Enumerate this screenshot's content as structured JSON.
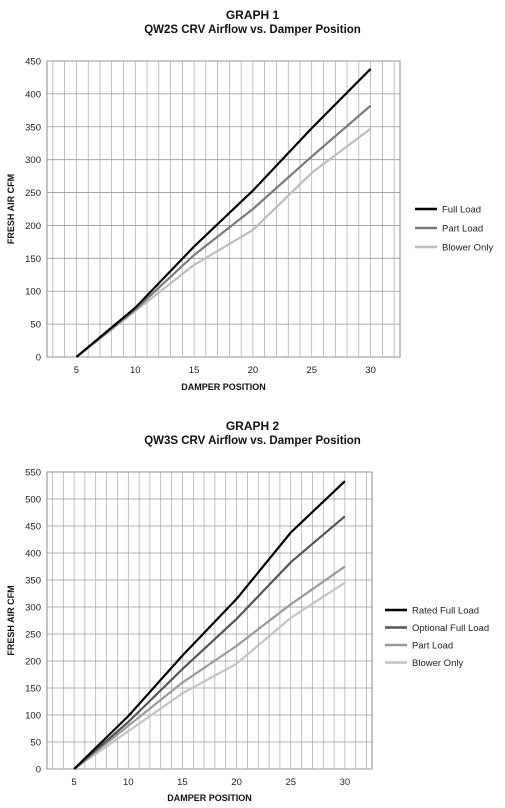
{
  "chart_data": [
    {
      "type": "line",
      "title": "GRAPH 1",
      "subtitle": "QW2S CRV Airflow vs. Damper Position",
      "xlabel": "DAMPER POSITION",
      "ylabel": "FRESH AIR CFM",
      "x": [
        5,
        10,
        15,
        20,
        25,
        30
      ],
      "xlim": [
        2.5,
        32.5
      ],
      "ylim": [
        0,
        450
      ],
      "y_ticks": [
        0,
        50,
        100,
        150,
        200,
        250,
        300,
        350,
        400,
        450
      ],
      "grid": true,
      "legend_position": "right",
      "series": [
        {
          "name": "Full Load",
          "color": "#000000",
          "values": [
            0,
            75,
            168,
            253,
            348,
            438
          ]
        },
        {
          "name": "Part Load",
          "color": "#7a7a7a",
          "values": [
            0,
            72,
            155,
            225,
            305,
            382
          ]
        },
        {
          "name": "Blower Only",
          "color": "#bdbdbd",
          "values": [
            0,
            70,
            140,
            193,
            280,
            347
          ]
        }
      ]
    },
    {
      "type": "line",
      "title": "GRAPH 2",
      "subtitle": "QW3S CRV Airflow vs. Damper Position",
      "xlabel": "DAMPER POSITION",
      "ylabel": "FRESH AIR CFM",
      "x": [
        5,
        10,
        15,
        20,
        25,
        30
      ],
      "xlim": [
        2.5,
        32.5
      ],
      "ylim": [
        0,
        550
      ],
      "y_ticks": [
        0,
        50,
        100,
        150,
        200,
        250,
        300,
        350,
        400,
        450,
        500,
        550
      ],
      "grid": true,
      "legend_position": "right",
      "series": [
        {
          "name": "Rated Full Load",
          "color": "#000000",
          "values": [
            0,
            98,
            210,
            315,
            438,
            533
          ]
        },
        {
          "name": "Optional Full Load",
          "color": "#555555",
          "values": [
            0,
            87,
            185,
            278,
            383,
            468
          ]
        },
        {
          "name": "Part Load",
          "color": "#999999",
          "values": [
            0,
            80,
            160,
            228,
            305,
            375
          ]
        },
        {
          "name": "Blower Only",
          "color": "#c4c4c4",
          "values": [
            0,
            70,
            140,
            195,
            280,
            345
          ]
        }
      ]
    }
  ]
}
